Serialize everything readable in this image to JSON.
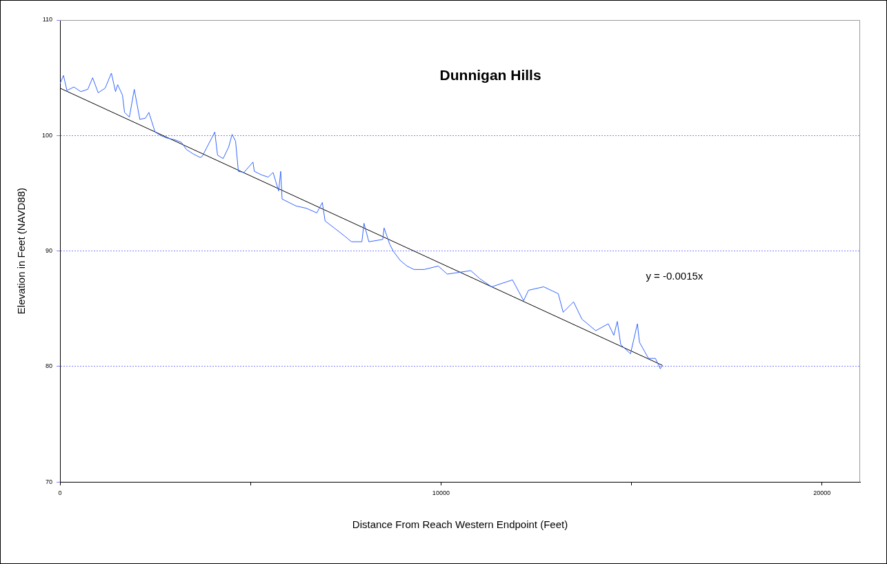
{
  "chart_data": {
    "type": "line",
    "title": "Dunnigan Hills",
    "xlabel": "Distance From Reach Western Endpoint (Feet)",
    "ylabel": "Elevation in Feet (NAVD88)",
    "xlim": [
      0,
      21000
    ],
    "xticks": [
      0,
      {
        "value": 5000,
        "label": null
      },
      10000,
      {
        "value": 15000,
        "label": null
      },
      20000
    ],
    "ylim": [
      70,
      110
    ],
    "yticks": [
      70,
      80,
      90,
      100,
      110
    ],
    "grid": "y",
    "legend": false,
    "annotations": [
      "y = -0.0015x"
    ],
    "series": [
      {
        "color": "#3366ff",
        "x": [
          0,
          91,
          182,
          364,
          546,
          729,
          856,
          1002,
          1184,
          1348,
          1457,
          1512,
          1639,
          1694,
          1821,
          1949,
          2095,
          2240,
          2332,
          2495,
          2641,
          2787,
          3042,
          3188,
          3315,
          3497,
          3679,
          3734,
          4062,
          4135,
          4281,
          4426,
          4517,
          4608,
          4681,
          4827,
          5064,
          5100,
          5282,
          5464,
          5592,
          5738,
          5792,
          5829,
          6011,
          6193,
          6466,
          6740,
          6885,
          6958,
          7195,
          7468,
          7650,
          7923,
          7978,
          8106,
          8470,
          8506,
          8652,
          8743,
          8925,
          9107,
          9290,
          9563,
          9927,
          10164,
          10783,
          11020,
          11330,
          11876,
          12168,
          12295,
          12696,
          13078,
          13206,
          13479,
          13698,
          14062,
          14390,
          14536,
          14627,
          14718,
          14973,
          15155,
          15209,
          15446,
          15628,
          15756,
          15810
        ],
        "values": [
          104.5,
          105.2,
          103.9,
          104.2,
          103.8,
          104.0,
          105.0,
          103.7,
          104.1,
          105.4,
          103.8,
          104.4,
          103.5,
          102.0,
          101.6,
          104.0,
          101.4,
          101.5,
          102.0,
          100.3,
          100.0,
          99.8,
          99.6,
          99.4,
          98.8,
          98.4,
          98.1,
          98.2,
          100.3,
          98.3,
          98.0,
          99.0,
          100.1,
          99.5,
          96.9,
          96.8,
          97.7,
          96.9,
          96.6,
          96.4,
          96.8,
          95.2,
          96.9,
          94.5,
          94.2,
          93.9,
          93.7,
          93.3,
          94.2,
          92.6,
          92.0,
          91.3,
          90.8,
          90.8,
          92.4,
          90.8,
          91.0,
          92.0,
          90.6,
          90.0,
          89.2,
          88.7,
          88.4,
          88.4,
          88.7,
          88.0,
          88.3,
          87.6,
          86.9,
          87.5,
          85.7,
          86.6,
          86.9,
          86.3,
          84.7,
          85.6,
          84.1,
          83.1,
          83.7,
          82.7,
          83.9,
          81.9,
          81.1,
          83.7,
          82.1,
          80.7,
          80.7,
          79.8,
          80.1
        ]
      },
      {
        "type": "line",
        "color": "#000000",
        "x": [
          0,
          15810
        ],
        "values": [
          104.1,
          80.1
        ]
      }
    ]
  }
}
